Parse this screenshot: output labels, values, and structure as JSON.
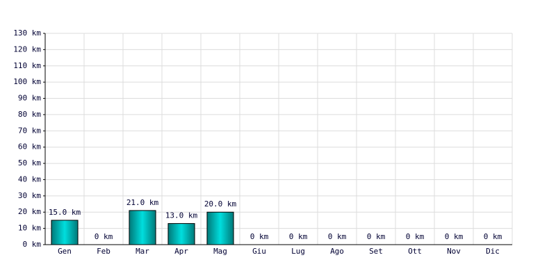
{
  "chart_data": {
    "type": "bar",
    "categories": [
      "Gen",
      "Feb",
      "Mar",
      "Apr",
      "Mag",
      "Giu",
      "Lug",
      "Ago",
      "Set",
      "Ott",
      "Nov",
      "Dic"
    ],
    "values": [
      15,
      0,
      21,
      13,
      20,
      0,
      0,
      0,
      0,
      0,
      0,
      0
    ],
    "value_labels": [
      "15.0 km",
      "0 km",
      "21.0 km",
      "13.0 km",
      "20.0 km",
      "0 km",
      "0 km",
      "0 km",
      "0 km",
      "0 km",
      "0 km",
      "0 km"
    ],
    "color": "#00dede",
    "ylim": [
      0,
      130
    ],
    "yticks": [
      {
        "value": 0,
        "label": "0 km"
      },
      {
        "value": 10,
        "label": "10 km"
      },
      {
        "value": 20,
        "label": "20 km"
      },
      {
        "value": 30,
        "label": "30 km"
      },
      {
        "value": 40,
        "label": "40 km"
      },
      {
        "value": 50,
        "label": "50 km"
      },
      {
        "value": 60,
        "label": "60 km"
      },
      {
        "value": 70,
        "label": "70 km"
      },
      {
        "value": 80,
        "label": "80 km"
      },
      {
        "value": 90,
        "label": "90 km"
      },
      {
        "value": 100,
        "label": "100 km"
      },
      {
        "value": 110,
        "label": "110 km"
      },
      {
        "value": 120,
        "label": "120 km"
      },
      {
        "value": 130,
        "label": "130 km"
      }
    ],
    "grid": true
  }
}
